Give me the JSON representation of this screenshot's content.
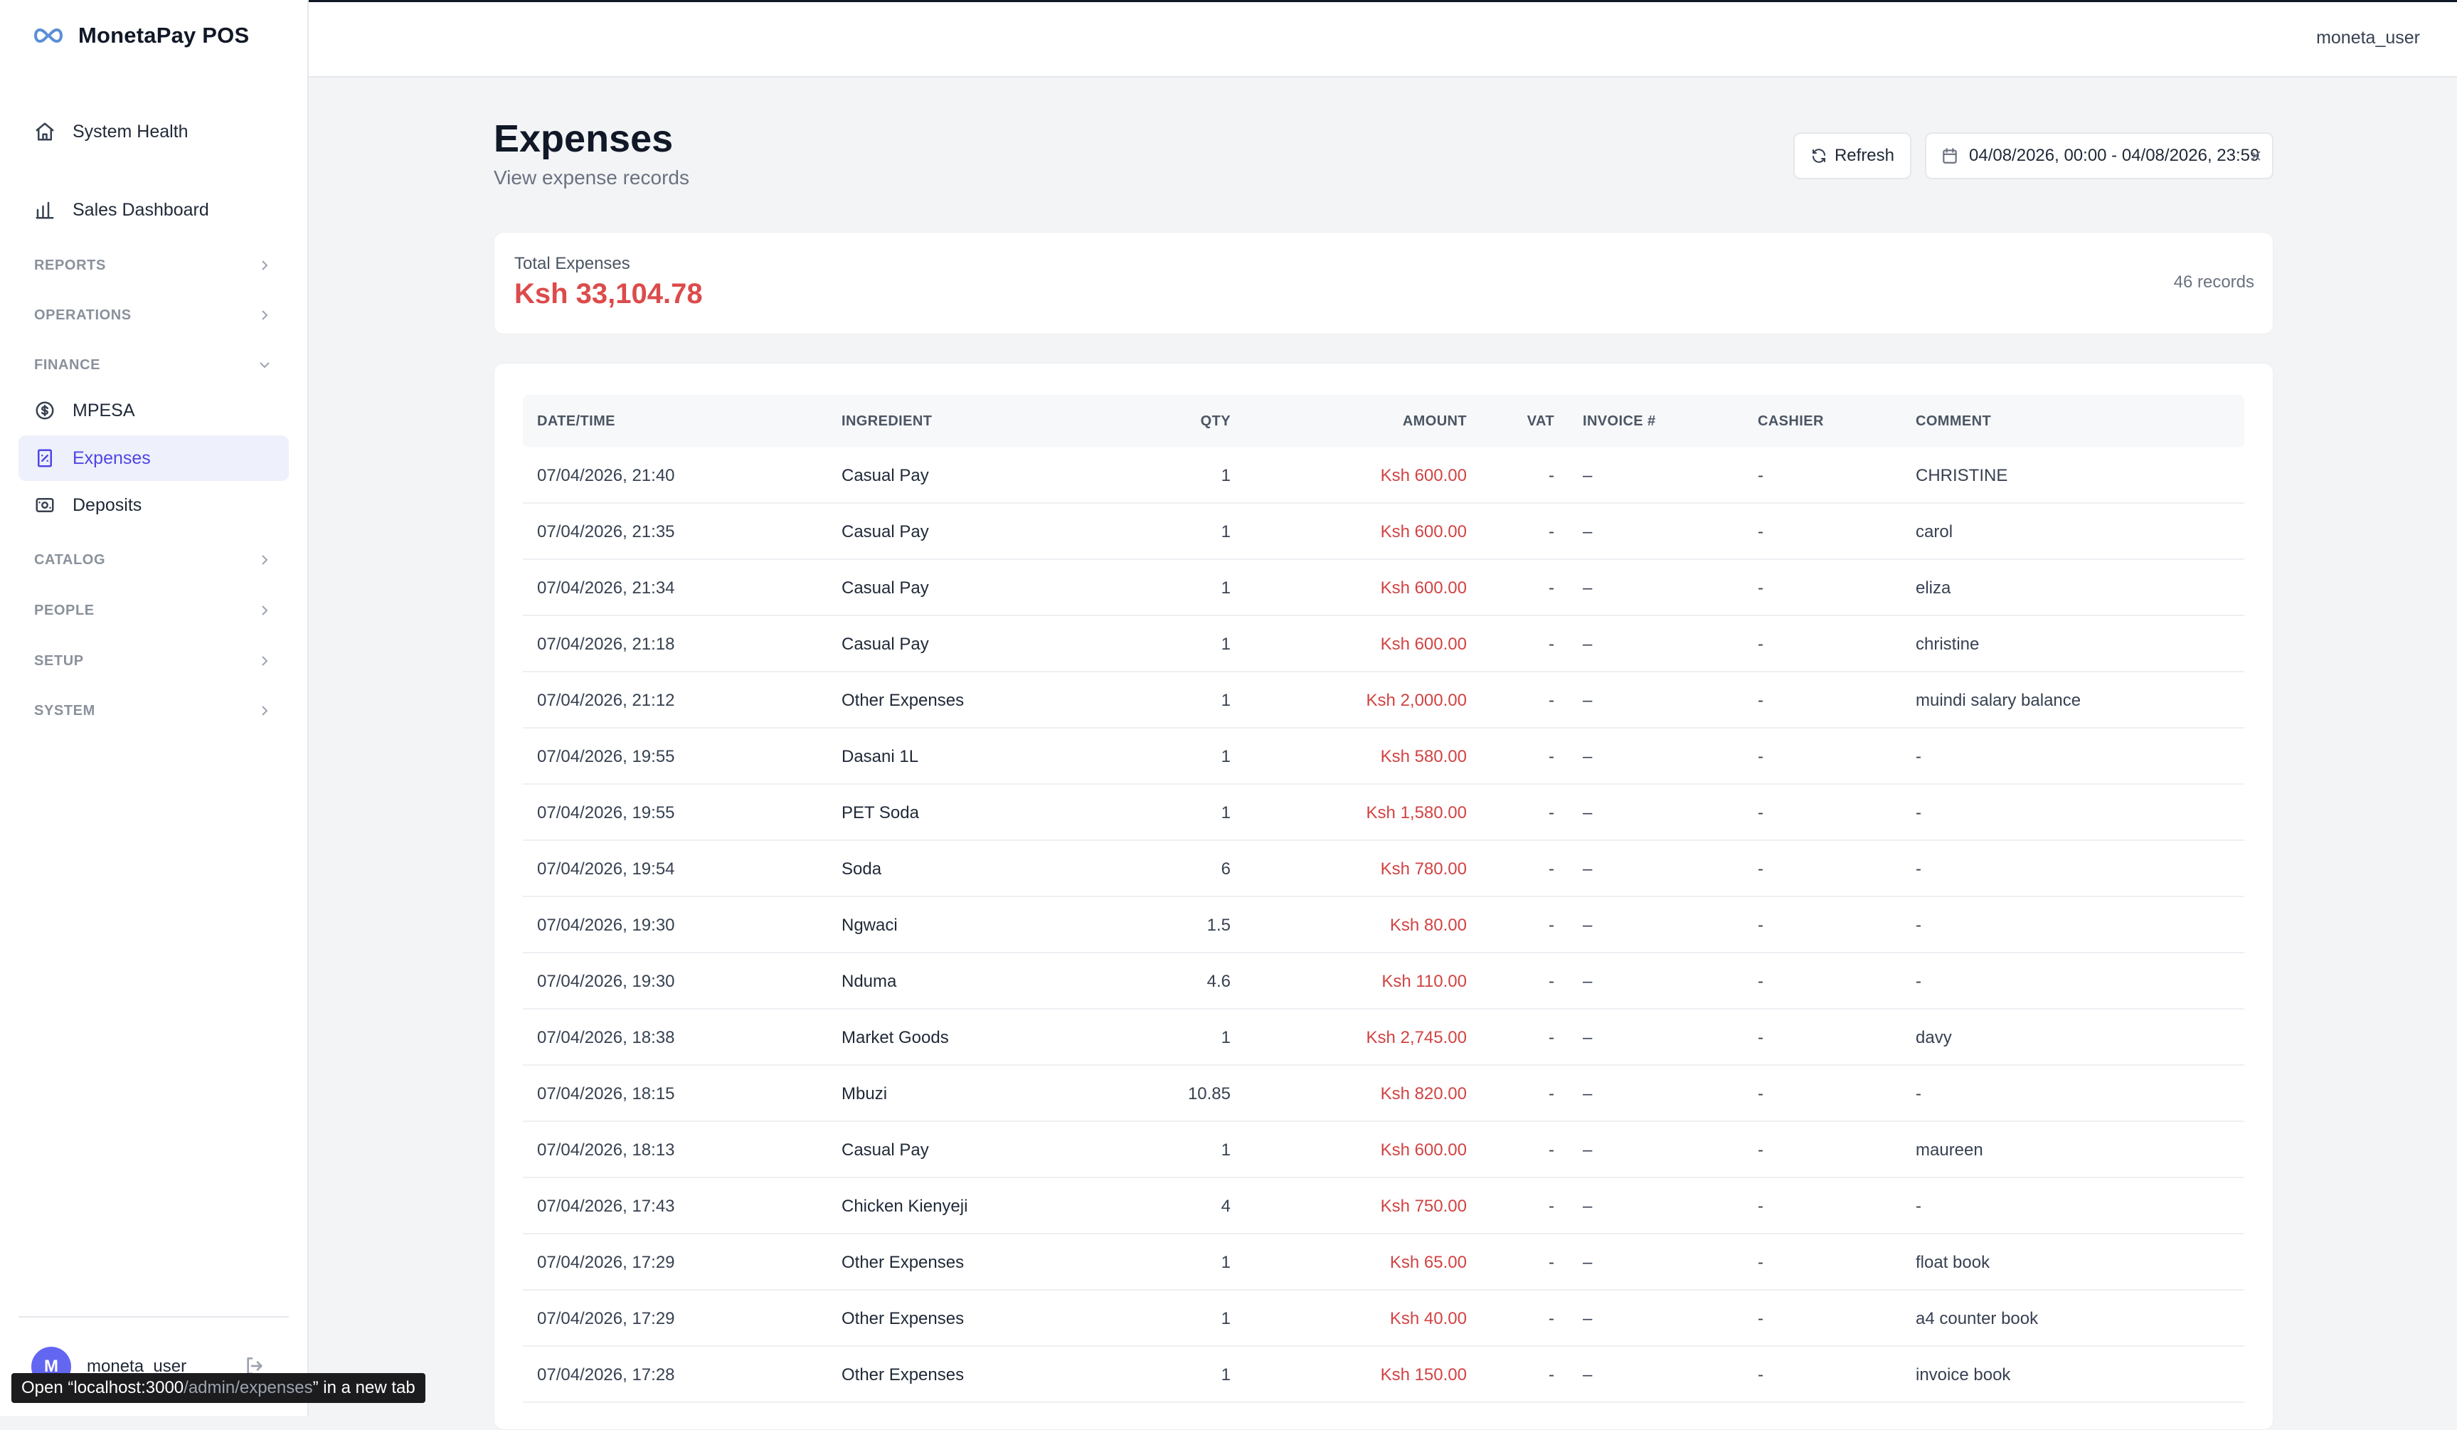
{
  "app": {
    "title": "MonetaPay POS"
  },
  "sidebar": {
    "top_items": [
      {
        "label": "System Health",
        "icon": "home-icon"
      },
      {
        "label": "Sales Dashboard",
        "icon": "bar-chart-icon"
      }
    ],
    "sections": [
      {
        "label": "REPORTS",
        "expanded": false
      },
      {
        "label": "OPERATIONS",
        "expanded": false
      },
      {
        "label": "FINANCE",
        "expanded": true
      },
      {
        "label": "CATALOG",
        "expanded": false
      },
      {
        "label": "PEOPLE",
        "expanded": false
      },
      {
        "label": "SETUP",
        "expanded": false
      },
      {
        "label": "SYSTEM",
        "expanded": false
      }
    ],
    "finance_items": [
      {
        "label": "MPESA",
        "icon": "dollar-circle-icon",
        "active": false
      },
      {
        "label": "Expenses",
        "icon": "receipt-icon",
        "active": true
      },
      {
        "label": "Deposits",
        "icon": "banknote-icon",
        "active": false
      }
    ],
    "user": {
      "initial": "M",
      "name": "moneta_user"
    }
  },
  "topbar": {
    "user": "moneta_user"
  },
  "tooltip": {
    "prefix": "Open “localhost:3000",
    "path": "/admin/expenses",
    "suffix": "” in a new tab"
  },
  "page": {
    "title": "Expenses",
    "subtitle": "View expense records",
    "refresh_label": "Refresh",
    "date_range": "04/08/2026, 00:00 - 04/08/2026, 23:59"
  },
  "summary": {
    "label": "Total Expenses",
    "value": "Ksh 33,104.78",
    "records": "46 records"
  },
  "colors": {
    "accent": "#4f46e5",
    "amount_red": "#d14343",
    "total_red": "#dc4b4b"
  },
  "table": {
    "headers": {
      "date": "DATE/TIME",
      "ingredient": "INGREDIENT",
      "qty": "QTY",
      "amount": "AMOUNT",
      "vat": "VAT",
      "invoice": "INVOICE #",
      "cashier": "CASHIER",
      "comment": "COMMENT"
    },
    "rows": [
      {
        "date": "07/04/2026, 21:40",
        "ingredient": "Casual Pay",
        "qty": "1",
        "amount": "Ksh 600.00",
        "vat": "-",
        "invoice": "–",
        "cashier": "-",
        "comment": "CHRISTINE"
      },
      {
        "date": "07/04/2026, 21:35",
        "ingredient": "Casual Pay",
        "qty": "1",
        "amount": "Ksh 600.00",
        "vat": "-",
        "invoice": "–",
        "cashier": "-",
        "comment": "carol"
      },
      {
        "date": "07/04/2026, 21:34",
        "ingredient": "Casual Pay",
        "qty": "1",
        "amount": "Ksh 600.00",
        "vat": "-",
        "invoice": "–",
        "cashier": "-",
        "comment": "eliza"
      },
      {
        "date": "07/04/2026, 21:18",
        "ingredient": "Casual Pay",
        "qty": "1",
        "amount": "Ksh 600.00",
        "vat": "-",
        "invoice": "–",
        "cashier": "-",
        "comment": "christine"
      },
      {
        "date": "07/04/2026, 21:12",
        "ingredient": "Other Expenses",
        "qty": "1",
        "amount": "Ksh 2,000.00",
        "vat": "-",
        "invoice": "–",
        "cashier": "-",
        "comment": "muindi salary balance"
      },
      {
        "date": "07/04/2026, 19:55",
        "ingredient": "Dasani 1L",
        "qty": "1",
        "amount": "Ksh 580.00",
        "vat": "-",
        "invoice": "–",
        "cashier": "-",
        "comment": "-"
      },
      {
        "date": "07/04/2026, 19:55",
        "ingredient": "PET Soda",
        "qty": "1",
        "amount": "Ksh 1,580.00",
        "vat": "-",
        "invoice": "–",
        "cashier": "-",
        "comment": "-"
      },
      {
        "date": "07/04/2026, 19:54",
        "ingredient": "Soda",
        "qty": "6",
        "amount": "Ksh 780.00",
        "vat": "-",
        "invoice": "–",
        "cashier": "-",
        "comment": "-"
      },
      {
        "date": "07/04/2026, 19:30",
        "ingredient": "Ngwaci",
        "qty": "1.5",
        "amount": "Ksh 80.00",
        "vat": "-",
        "invoice": "–",
        "cashier": "-",
        "comment": "-"
      },
      {
        "date": "07/04/2026, 19:30",
        "ingredient": "Nduma",
        "qty": "4.6",
        "amount": "Ksh 110.00",
        "vat": "-",
        "invoice": "–",
        "cashier": "-",
        "comment": "-"
      },
      {
        "date": "07/04/2026, 18:38",
        "ingredient": "Market Goods",
        "qty": "1",
        "amount": "Ksh 2,745.00",
        "vat": "-",
        "invoice": "–",
        "cashier": "-",
        "comment": "davy"
      },
      {
        "date": "07/04/2026, 18:15",
        "ingredient": "Mbuzi",
        "qty": "10.85",
        "amount": "Ksh 820.00",
        "vat": "-",
        "invoice": "–",
        "cashier": "-",
        "comment": "-"
      },
      {
        "date": "07/04/2026, 18:13",
        "ingredient": "Casual Pay",
        "qty": "1",
        "amount": "Ksh 600.00",
        "vat": "-",
        "invoice": "–",
        "cashier": "-",
        "comment": "maureen"
      },
      {
        "date": "07/04/2026, 17:43",
        "ingredient": "Chicken Kienyeji",
        "qty": "4",
        "amount": "Ksh 750.00",
        "vat": "-",
        "invoice": "–",
        "cashier": "-",
        "comment": "-"
      },
      {
        "date": "07/04/2026, 17:29",
        "ingredient": "Other Expenses",
        "qty": "1",
        "amount": "Ksh 65.00",
        "vat": "-",
        "invoice": "–",
        "cashier": "-",
        "comment": "float book"
      },
      {
        "date": "07/04/2026, 17:29",
        "ingredient": "Other Expenses",
        "qty": "1",
        "amount": "Ksh 40.00",
        "vat": "-",
        "invoice": "–",
        "cashier": "-",
        "comment": "a4 counter book"
      },
      {
        "date": "07/04/2026, 17:28",
        "ingredient": "Other Expenses",
        "qty": "1",
        "amount": "Ksh 150.00",
        "vat": "-",
        "invoice": "–",
        "cashier": "-",
        "comment": "invoice book"
      }
    ]
  }
}
